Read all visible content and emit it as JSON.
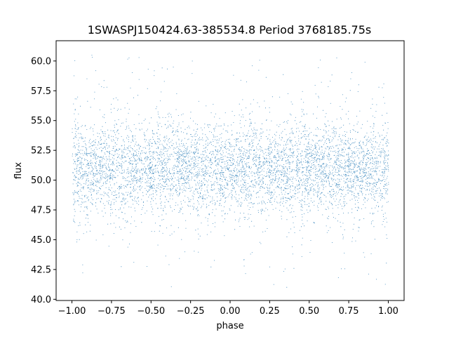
{
  "chart_data": {
    "type": "scatter",
    "title": "1SWASPJ150424.63-385534.8 Period 3768185.75s",
    "xlabel": "phase",
    "ylabel": "flux",
    "xlim": [
      -1.1,
      1.1
    ],
    "ylim": [
      39.9,
      61.7
    ],
    "xticks": [
      -1.0,
      -0.75,
      -0.5,
      -0.25,
      0.0,
      0.25,
      0.5,
      0.75,
      1.0
    ],
    "xtick_labels": [
      "−1.00",
      "−0.75",
      "−0.50",
      "−0.25",
      "0.00",
      "0.25",
      "0.50",
      "0.75",
      "1.00"
    ],
    "yticks": [
      40.0,
      42.5,
      45.0,
      47.5,
      50.0,
      52.5,
      55.0,
      57.5,
      60.0
    ],
    "ytick_labels": [
      "40.0",
      "42.5",
      "45.0",
      "47.5",
      "50.0",
      "52.5",
      "55.0",
      "57.5",
      "60.0"
    ],
    "grid": false,
    "legend": "none",
    "marker_color": "#1f77b4",
    "series": [
      {
        "x_range": [
          -1.0,
          1.0
        ],
        "y_core_range": [
          47.0,
          55.0
        ],
        "y_full_range": [
          41.0,
          60.7
        ],
        "y_center": 51.0,
        "point_count_estimate": 6000
      }
    ]
  }
}
